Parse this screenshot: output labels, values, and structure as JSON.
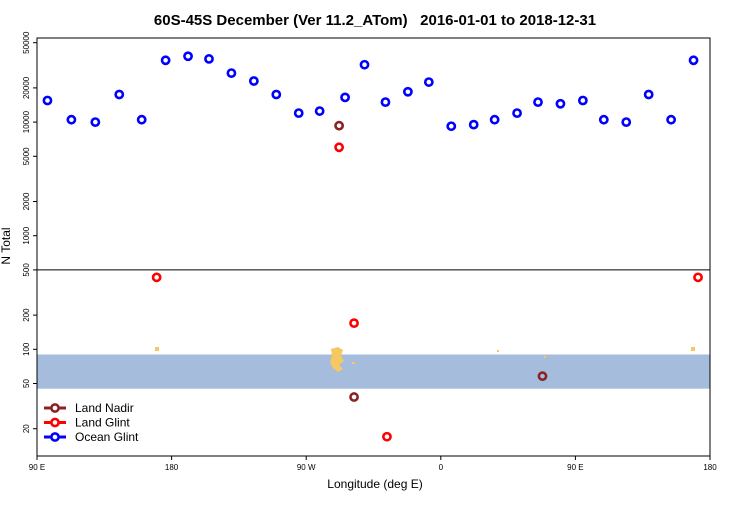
{
  "chart_data": {
    "type": "scatter",
    "title": "60S-45S December (Ver 11.2_ATom)   2016-01-01 to 2018-12-31",
    "xlabel": "Longitude (deg E)",
    "ylabel": "N Total",
    "x_axis": {
      "range": [
        90,
        450
      ],
      "ticks": [
        {
          "value": 90,
          "label": "90 E"
        },
        {
          "value": 180,
          "label": "180"
        },
        {
          "value": 270,
          "label": "90 W"
        },
        {
          "value": 360,
          "label": "0"
        },
        {
          "value": 450,
          "label": "90 E"
        },
        {
          "value": 540,
          "label": "180"
        }
      ]
    },
    "y_axis": {
      "scale": "log",
      "ticks": [
        20,
        50,
        100,
        200,
        500,
        1000,
        2000,
        5000,
        10000,
        20000,
        50000
      ],
      "divider_at": 500
    },
    "x_range": [
      90,
      540
    ],
    "legend_position": "bottom-left",
    "series": [
      {
        "name": "Land Nadir",
        "color": "#8b2323",
        "points": [
          [
            292,
            9300
          ],
          [
            302,
            38
          ],
          [
            428,
            58
          ]
        ]
      },
      {
        "name": "Land Glint",
        "color": "#ff0000",
        "points": [
          [
            170,
            430
          ],
          [
            292,
            6000
          ],
          [
            302,
            170
          ],
          [
            324,
            17
          ],
          [
            532,
            430
          ]
        ]
      },
      {
        "name": "Ocean Glint",
        "color": "#0000ff",
        "points": [
          [
            97,
            15500
          ],
          [
            113,
            10500
          ],
          [
            129,
            10000
          ],
          [
            145,
            17500
          ],
          [
            160,
            10500
          ],
          [
            176,
            35000
          ],
          [
            191,
            38000
          ],
          [
            205,
            36000
          ],
          [
            220,
            27000
          ],
          [
            235,
            23000
          ],
          [
            250,
            17500
          ],
          [
            265,
            12000
          ],
          [
            279,
            12500
          ],
          [
            296,
            16500
          ],
          [
            309,
            32000
          ],
          [
            323,
            15000
          ],
          [
            338,
            18500
          ],
          [
            352,
            22500
          ],
          [
            367,
            9200
          ],
          [
            382,
            9500
          ],
          [
            396,
            10500
          ],
          [
            411,
            12000
          ],
          [
            425,
            15000
          ],
          [
            440,
            14500
          ],
          [
            455,
            15500
          ],
          [
            469,
            10500
          ],
          [
            484,
            10000
          ],
          [
            499,
            17500
          ],
          [
            514,
            10500
          ],
          [
            529,
            35000
          ]
        ]
      }
    ],
    "background_band": {
      "color": "#a6bcdc",
      "y_range": [
        45,
        90
      ]
    },
    "land_color": "#f5c960"
  }
}
